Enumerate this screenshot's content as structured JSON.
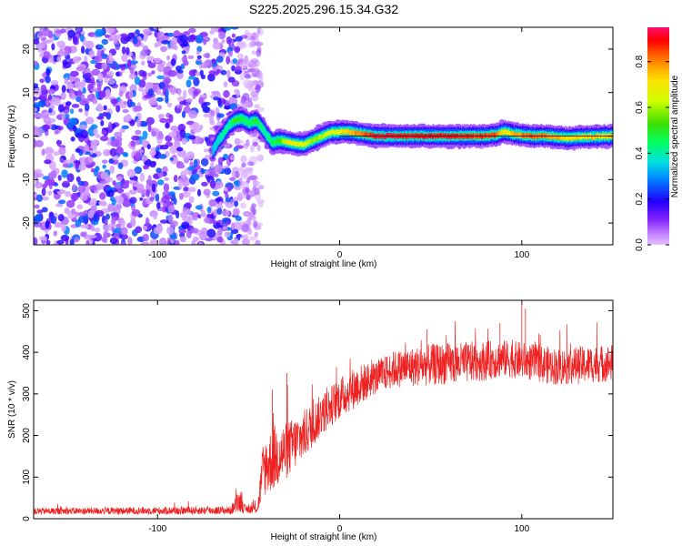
{
  "figure": {
    "title": "S225.2025.296.15.34.G32"
  },
  "chart_data": [
    {
      "type": "heatmap",
      "name": "spectrogram",
      "xlabel": "Height of straight line (km)",
      "ylabel": "Frequency (Hz)",
      "xlim": [
        -168,
        150
      ],
      "ylim": [
        -25,
        25
      ],
      "xticks": [
        -100,
        0,
        100
      ],
      "yticks": [
        -20,
        -10,
        0,
        10,
        20
      ],
      "colorbar": {
        "label": "Normalized spectral amplitude",
        "range": [
          0,
          0.95
        ],
        "ticks": [
          "0.0",
          "0.2",
          "0.4",
          "0.6",
          "0.8"
        ],
        "tick_values": [
          0,
          0.2,
          0.4,
          0.6,
          0.8
        ],
        "colors": [
          "#e0b8ff",
          "#a050ff",
          "#7000e0",
          "#0000ff",
          "#00c0ff",
          "#00ff80",
          "#00e000",
          "#c0ff00",
          "#ffff00",
          "#ff8000",
          "#ff0000",
          "#ff1060"
        ]
      },
      "noise_region": {
        "x": [
          -168,
          -55
        ],
        "f": [
          -25,
          25
        ],
        "amplitude_range": [
          0.02,
          0.3
        ]
      },
      "signal_track": [
        {
          "x": -70,
          "f": -3.5,
          "amp": 0.35
        },
        {
          "x": -67,
          "f": -1.0,
          "amp": 0.38
        },
        {
          "x": -64,
          "f": 0.5,
          "amp": 0.45
        },
        {
          "x": -61,
          "f": 2.5,
          "amp": 0.42
        },
        {
          "x": -58,
          "f": 3.5,
          "amp": 0.55
        },
        {
          "x": -54,
          "f": 4.0,
          "amp": 0.5
        },
        {
          "x": -50,
          "f": 3.0,
          "amp": 0.45
        },
        {
          "x": -46,
          "f": 3.5,
          "amp": 0.55
        },
        {
          "x": -43,
          "f": 2.0,
          "amp": 0.45
        },
        {
          "x": -40,
          "f": 0.0,
          "amp": 0.42
        },
        {
          "x": -37,
          "f": -1.5,
          "amp": 0.5
        },
        {
          "x": -33,
          "f": -1.0,
          "amp": 0.55
        },
        {
          "x": -28,
          "f": -1.5,
          "amp": 0.75
        },
        {
          "x": -24,
          "f": -1.8,
          "amp": 0.7
        },
        {
          "x": -20,
          "f": -2.0,
          "amp": 0.72
        },
        {
          "x": -15,
          "f": -1.0,
          "amp": 0.6
        },
        {
          "x": -10,
          "f": 0.0,
          "amp": 0.65
        },
        {
          "x": -5,
          "f": 0.8,
          "amp": 0.7
        },
        {
          "x": 0,
          "f": 1.0,
          "amp": 0.72
        },
        {
          "x": 5,
          "f": 1.0,
          "amp": 0.8
        },
        {
          "x": 12,
          "f": 0.5,
          "amp": 0.88
        },
        {
          "x": 20,
          "f": 0.0,
          "amp": 0.95
        },
        {
          "x": 40,
          "f": 0.0,
          "amp": 0.95
        },
        {
          "x": 60,
          "f": 0.0,
          "amp": 0.95
        },
        {
          "x": 75,
          "f": 0.0,
          "amp": 0.9
        },
        {
          "x": 85,
          "f": 0.2,
          "amp": 0.88
        },
        {
          "x": 90,
          "f": 1.0,
          "amp": 0.72
        },
        {
          "x": 95,
          "f": 0.5,
          "amp": 0.8
        },
        {
          "x": 105,
          "f": 0.0,
          "amp": 0.88
        },
        {
          "x": 115,
          "f": 0.0,
          "amp": 0.82
        },
        {
          "x": 125,
          "f": -0.5,
          "amp": 0.75
        },
        {
          "x": 135,
          "f": -0.2,
          "amp": 0.78
        },
        {
          "x": 150,
          "f": 0.0,
          "amp": 0.78
        }
      ],
      "reference_line": {
        "x": [
          0,
          150
        ],
        "f": 0
      }
    },
    {
      "type": "line",
      "name": "snr",
      "xlabel": "Height of straight line (km)",
      "ylabel": "SNR (10 * v/v)",
      "xlim": [
        -168,
        150
      ],
      "ylim": [
        0,
        525
      ],
      "xticks": [
        -100,
        0,
        100
      ],
      "yticks": [
        0,
        100,
        200,
        300,
        400,
        500
      ],
      "color": "#ee2222",
      "envelope": [
        {
          "x": -168,
          "mean": 18,
          "noise": 8
        },
        {
          "x": -60,
          "mean": 20,
          "noise": 10
        },
        {
          "x": -54,
          "mean": 45,
          "noise": 30
        },
        {
          "x": -52,
          "mean": 22,
          "noise": 10
        },
        {
          "x": -45,
          "mean": 25,
          "noise": 12
        },
        {
          "x": -42,
          "mean": 120,
          "noise": 70
        },
        {
          "x": -35,
          "mean": 150,
          "noise": 80
        },
        {
          "x": -30,
          "mean": 160,
          "noise": 70
        },
        {
          "x": -20,
          "mean": 200,
          "noise": 60
        },
        {
          "x": -10,
          "mean": 250,
          "noise": 50
        },
        {
          "x": 0,
          "mean": 290,
          "noise": 50
        },
        {
          "x": 10,
          "mean": 320,
          "noise": 50
        },
        {
          "x": 20,
          "mean": 340,
          "noise": 40
        },
        {
          "x": 30,
          "mean": 360,
          "noise": 45
        },
        {
          "x": 50,
          "mean": 370,
          "noise": 50
        },
        {
          "x": 70,
          "mean": 375,
          "noise": 50
        },
        {
          "x": 90,
          "mean": 385,
          "noise": 45
        },
        {
          "x": 100,
          "mean": 380,
          "noise": 45
        },
        {
          "x": 120,
          "mean": 365,
          "noise": 45
        },
        {
          "x": 150,
          "mean": 375,
          "noise": 45
        }
      ],
      "spikes": [
        {
          "x": -29,
          "y": 350
        },
        {
          "x": -37,
          "y": 310
        },
        {
          "x": 100,
          "y": 520
        },
        {
          "x": 102,
          "y": 505
        },
        {
          "x": 48,
          "y": 455
        },
        {
          "x": 88,
          "y": 470
        }
      ]
    }
  ]
}
